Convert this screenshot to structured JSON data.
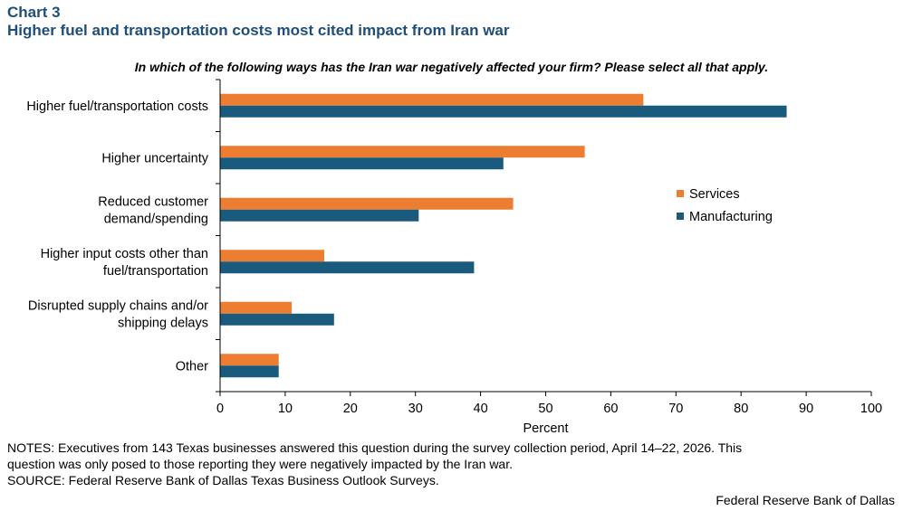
{
  "header": {
    "chart_label": "Chart 3",
    "title": "Higher fuel and transportation costs most cited impact from Iran war",
    "question": "In which of the following ways has the Iran war negatively affected your firm? Please select all that apply."
  },
  "footer": {
    "notes_line1": "NOTES: Executives from 143 Texas businesses answered this question during the survey collection period, April 14–22, 2026. This",
    "notes_line2": "question was only posed to those reporting they were negatively impacted by the Iran war.",
    "source": "SOURCE: Federal Reserve Bank of Dallas Texas Business Outlook Surveys.",
    "credit": "Federal Reserve Bank of Dallas"
  },
  "chart_data": {
    "type": "bar",
    "orientation": "horizontal",
    "title": "",
    "xlabel": "Percent",
    "ylabel": "",
    "xlim": [
      0,
      100
    ],
    "xticks": [
      0,
      10,
      20,
      30,
      40,
      50,
      60,
      70,
      80,
      90,
      100
    ],
    "grid": false,
    "legend_position": "right",
    "categories": [
      [
        "Higher fuel/transportation costs"
      ],
      [
        "Higher uncertainty"
      ],
      [
        "Reduced customer",
        "demand/spending"
      ],
      [
        "Higher input costs other than",
        "fuel/transportation"
      ],
      [
        "Disrupted supply chains and/or",
        "shipping delays"
      ],
      [
        "Other"
      ]
    ],
    "series": [
      {
        "name": "Services",
        "color": "#ed7d31",
        "values": [
          65,
          56,
          45,
          16,
          11,
          9
        ]
      },
      {
        "name": "Manufacturing",
        "color": "#1a5b7d",
        "values": [
          87,
          43.5,
          30.5,
          39,
          17.5,
          9
        ]
      }
    ]
  }
}
